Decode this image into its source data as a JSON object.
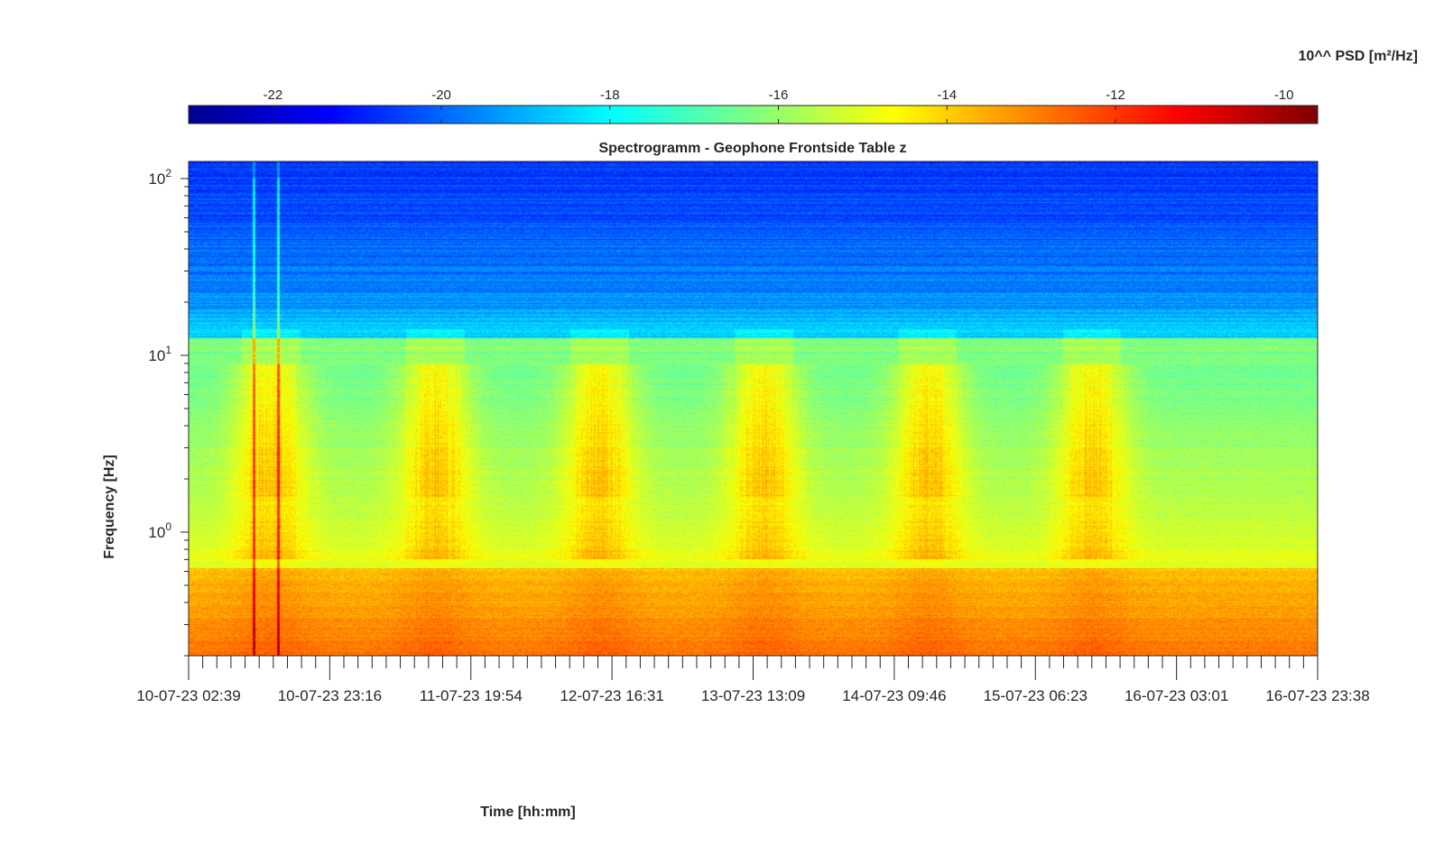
{
  "chart_data": {
    "type": "heatmap",
    "title": "Spectrogramm - Geophone Frontside Table z",
    "xlabel": "Time [hh:mm]",
    "ylabel": "Frequency [Hz]",
    "colorbar_label": "10^^ PSD [m²/Hz]",
    "colormap": "jet",
    "color_range": [
      -23,
      -9.6
    ],
    "colorbar_ticks": [
      "-22",
      "-20",
      "-18",
      "-16",
      "-14",
      "-12",
      "-10"
    ],
    "colorbar_tick_values": [
      -22,
      -20,
      -18,
      -16,
      -14,
      -12,
      -10
    ],
    "y_scale": "log",
    "ylim": [
      0.2,
      125
    ],
    "y_ticks": [
      "10^2",
      "10^1",
      "10^0"
    ],
    "y_tick_values": [
      100,
      10,
      1
    ],
    "x_ticks": [
      "10-07-23 02:39",
      "10-07-23 23:16",
      "11-07-23 19:54",
      "12-07-23 16:31",
      "13-07-23 13:09",
      "14-07-23 09:46",
      "15-07-23 06:23",
      "16-07-23 03:01",
      "16-07-23 23:38"
    ],
    "x_range": [
      "10-07-23 02:39",
      "16-07-23 23:38"
    ],
    "grid": false,
    "daytime_activity_centres_days": [
      0.5,
      1.5,
      2.5,
      3.5,
      4.5,
      5.5
    ],
    "bands": [
      {
        "frequency_hz": "1-5",
        "psd_log10_day": -14.3,
        "psd_log10_night": -16.2
      },
      {
        "frequency_hz": "0.2-0.7",
        "psd_log10": -13.0
      },
      {
        "frequency_hz": "10-13",
        "psd_log10": -16.2
      },
      {
        "frequency_hz": "30-125",
        "psd_log10": -19.5
      }
    ]
  }
}
